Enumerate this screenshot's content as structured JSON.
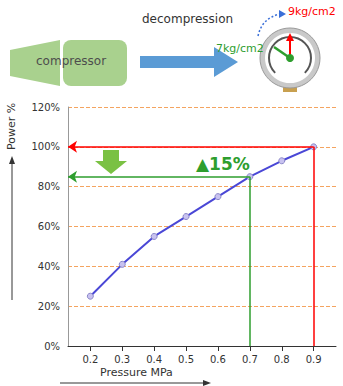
{
  "header": {
    "title": "decompression",
    "machine": "compressor",
    "gauge_before": {
      "text": "9kg/cm2",
      "color": "#ff0000"
    },
    "gauge_after": {
      "text": "7kg/cm2",
      "color": "#2e9e2e"
    }
  },
  "chart_data": {
    "type": "line",
    "x": [
      0.2,
      0.3,
      0.4,
      0.5,
      0.6,
      0.7,
      0.8,
      0.9
    ],
    "values": [
      25,
      41,
      55,
      65,
      75,
      85,
      93,
      100
    ],
    "color": "#4a47d6",
    "marker": "circle",
    "line_style": "solid",
    "xlabel": "Pressure MPa",
    "ylabel": "Power %",
    "xlim": [
      0.13,
      0.97
    ],
    "xticks": [
      0.2,
      0.3,
      0.4,
      0.5,
      0.6,
      0.7,
      0.8,
      0.9
    ],
    "ylim": [
      0,
      120
    ],
    "yticks": [
      {
        "value": 0,
        "label": "0%"
      },
      {
        "value": 20,
        "label": "20%"
      },
      {
        "value": 40,
        "label": "40%"
      },
      {
        "value": 60,
        "label": "60%"
      },
      {
        "value": 80,
        "label": "80%"
      },
      {
        "value": 100,
        "label": "100%"
      },
      {
        "value": 120,
        "label": "120%"
      }
    ],
    "grid": true,
    "reference_lines": [
      {
        "x": 0.9,
        "y": 100,
        "color": "#ff0000"
      },
      {
        "x": 0.7,
        "y": 85,
        "color": "#2e9e2e"
      }
    ],
    "annotations": [
      {
        "text": "▲15%",
        "color": "#2e9e2e"
      }
    ]
  }
}
